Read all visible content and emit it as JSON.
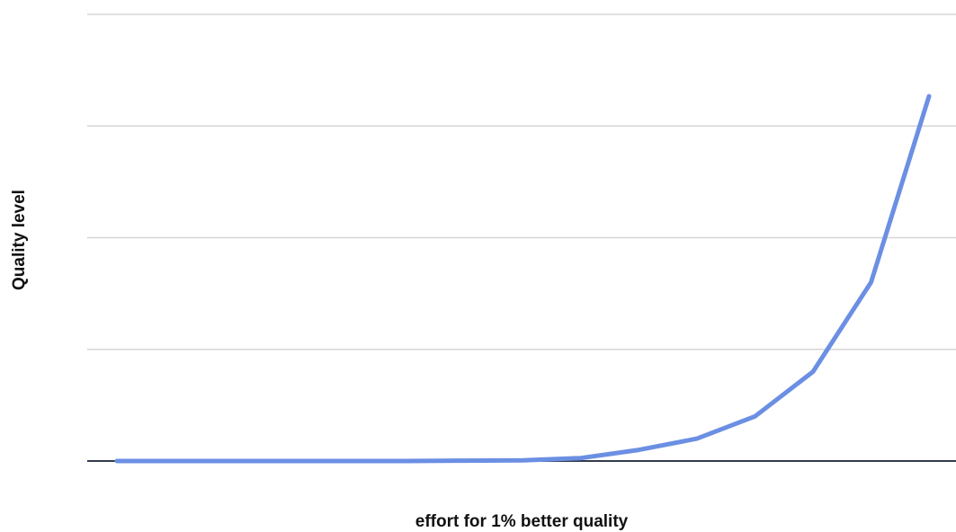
{
  "chart_data": {
    "type": "line",
    "title": "",
    "xlabel": "effort for 1% better quality",
    "ylabel": "Quality level",
    "x": [
      1,
      2,
      3,
      4,
      5,
      6,
      7,
      8,
      9,
      10,
      11,
      12,
      13,
      14,
      15
    ],
    "series": [
      {
        "values": [
          0,
          0,
          0,
          0,
          0,
          0,
          0.01,
          0.02,
          0.08,
          0.3,
          0.6,
          1.2,
          2.4,
          4.8,
          9.8
        ]
      }
    ],
    "ylim": [
      0,
      12
    ],
    "grid": true,
    "xticks_visible": false,
    "yticks_visible": false,
    "colors": {
      "line": "#6b8fe3",
      "baseline": "#333c4e",
      "grid": "#d6d6d6"
    }
  }
}
